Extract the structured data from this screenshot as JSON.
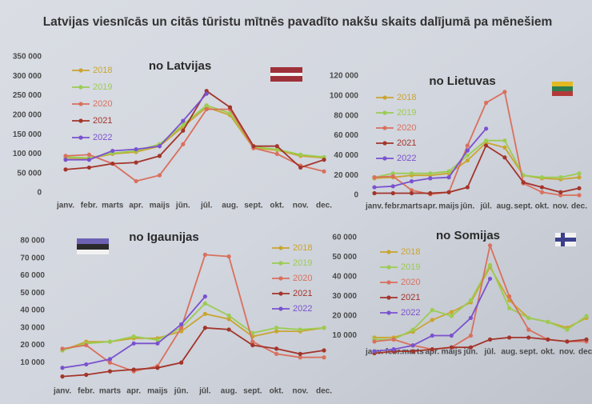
{
  "title": "Latvijas viesnīcās un citās tūristu mītnēs pavadīto nakšu skaits dalījumā pa mēnešiem",
  "chart_data": [
    {
      "type": "line",
      "title": "no Latvijas",
      "categories": [
        "janv.",
        "febr.",
        "marts",
        "apr.",
        "maijs",
        "jūn.",
        "jūl.",
        "aug.",
        "sept.",
        "okt.",
        "nov.",
        "dec."
      ],
      "ylim": [
        0,
        350000
      ],
      "yticks": [
        0,
        {
          "value": 50000,
          "label": "50 000"
        },
        {
          "value": 100000,
          "label": "100 000"
        },
        {
          "value": 150000,
          "label": "150 000"
        },
        {
          "value": 200000,
          "label": "200 000"
        },
        {
          "value": 250000,
          "label": "250 000"
        },
        {
          "value": 300000,
          "label": "300 000"
        },
        {
          "value": 350000,
          "label": "350 000"
        }
      ],
      "series": [
        {
          "name": "2018",
          "color": "#c9a530",
          "values": [
            90000,
            88000,
            100000,
            105000,
            120000,
            170000,
            220000,
            200000,
            115000,
            110000,
            95000,
            90000
          ]
        },
        {
          "name": "2019",
          "color": "#9bcc52",
          "values": [
            92000,
            90000,
            102000,
            108000,
            125000,
            175000,
            225000,
            205000,
            118000,
            112000,
            98000,
            92000
          ]
        },
        {
          "name": "2020",
          "color": "#d9705e",
          "values": [
            95000,
            98000,
            75000,
            30000,
            45000,
            125000,
            215000,
            215000,
            115000,
            100000,
            70000,
            55000
          ]
        },
        {
          "name": "2021",
          "color": "#a3352b",
          "values": [
            60000,
            65000,
            75000,
            78000,
            95000,
            160000,
            262000,
            220000,
            120000,
            120000,
            65000,
            85000
          ]
        },
        {
          "name": "2022",
          "color": "#7a52cf",
          "values": [
            85000,
            85000,
            108000,
            112000,
            120000,
            185000,
            255000,
            null,
            null,
            null,
            null,
            null
          ]
        }
      ]
    },
    {
      "type": "line",
      "title": "no Lietuvas",
      "categories": [
        "janv.",
        "febr.",
        "marts",
        "apr.",
        "maijs",
        "jūn.",
        "jūl.",
        "aug.",
        "sept.",
        "okt.",
        "nov.",
        "dec."
      ],
      "ylim": [
        0,
        120000
      ],
      "yticks": [
        0,
        {
          "value": 20000,
          "label": "20 000"
        },
        {
          "value": 40000,
          "label": "40 000"
        },
        {
          "value": 60000,
          "label": "60 000"
        },
        {
          "value": 80000,
          "label": "80 000"
        },
        {
          "value": 100000,
          "label": "100 000"
        },
        {
          "value": 120000,
          "label": "120 000"
        }
      ],
      "series": [
        {
          "name": "2018",
          "color": "#c9a530",
          "values": [
            17000,
            18000,
            20000,
            20000,
            22000,
            35000,
            53000,
            48000,
            20000,
            17000,
            16000,
            18000
          ]
        },
        {
          "name": "2019",
          "color": "#9bcc52",
          "values": [
            18000,
            22000,
            22000,
            22000,
            24000,
            40000,
            55000,
            55000,
            20000,
            18000,
            18000,
            22000
          ]
        },
        {
          "name": "2020",
          "color": "#d9705e",
          "values": [
            18000,
            19000,
            5000,
            1000,
            3000,
            50000,
            93000,
            104000,
            12000,
            3000,
            0,
            0
          ]
        },
        {
          "name": "2021",
          "color": "#a3352b",
          "values": [
            2000,
            2000,
            2000,
            2000,
            3000,
            8000,
            50000,
            38000,
            13000,
            8000,
            3000,
            7000
          ]
        },
        {
          "name": "2022",
          "color": "#7a52cf",
          "values": [
            8000,
            9000,
            14000,
            17000,
            18000,
            45000,
            67000,
            null,
            null,
            null,
            null,
            null
          ]
        }
      ]
    },
    {
      "type": "line",
      "title": "no Igaunijas",
      "categories": [
        "janv.",
        "febr.",
        "marts",
        "apr.",
        "maijs",
        "jūn.",
        "jūl.",
        "aug.",
        "sept.",
        "okt.",
        "nov.",
        "dec."
      ],
      "ylim": [
        0,
        80000
      ],
      "yticks": [
        {
          "value": 10000,
          "label": "10 000"
        },
        {
          "value": 20000,
          "label": "20 000"
        },
        {
          "value": 30000,
          "label": "30 000"
        },
        {
          "value": 40000,
          "label": "40 000"
        },
        {
          "value": 50000,
          "label": "50 000"
        },
        {
          "value": 60000,
          "label": "60 000"
        },
        {
          "value": 70000,
          "label": "70 000"
        },
        {
          "value": 80000,
          "label": "80 000"
        }
      ],
      "series": [
        {
          "name": "2018",
          "color": "#c9a530",
          "values": [
            17000,
            22000,
            22000,
            24000,
            24000,
            28000,
            38000,
            35000,
            25000,
            28000,
            28000,
            30000
          ]
        },
        {
          "name": "2019",
          "color": "#9bcc52",
          "values": [
            17000,
            21000,
            22000,
            25000,
            23000,
            30000,
            44000,
            37000,
            27000,
            30000,
            29000,
            30000
          ]
        },
        {
          "name": "2020",
          "color": "#d9705e",
          "values": [
            18000,
            20000,
            10000,
            5000,
            8000,
            30000,
            72000,
            71000,
            22000,
            15000,
            13000,
            13000
          ]
        },
        {
          "name": "2021",
          "color": "#a3352b",
          "values": [
            2000,
            3000,
            5000,
            6000,
            7000,
            10000,
            30000,
            29000,
            20000,
            18000,
            15000,
            17000
          ]
        },
        {
          "name": "2022",
          "color": "#7a52cf",
          "values": [
            7000,
            9000,
            12000,
            21000,
            21000,
            32000,
            48000,
            null,
            null,
            null,
            null,
            null
          ]
        }
      ]
    },
    {
      "type": "line",
      "title": "no Somijas",
      "categories": [
        "janv.",
        "febr.",
        "marts",
        "apr.",
        "maijs",
        "jūn.",
        "jūl.",
        "aug.",
        "sept.",
        "okt.",
        "nov.",
        "dec."
      ],
      "ylim": [
        0,
        60000
      ],
      "yticks": [
        {
          "value": 10000,
          "label": "10 000"
        },
        {
          "value": 20000,
          "label": "20 000"
        },
        {
          "value": 30000,
          "label": "30 000"
        },
        {
          "value": 40000,
          "label": "40 000"
        },
        {
          "value": 50000,
          "label": "50 000"
        },
        {
          "value": 60000,
          "label": "60 000"
        }
      ],
      "series": [
        {
          "name": "2018",
          "color": "#c9a530",
          "values": [
            9000,
            9000,
            12000,
            18000,
            22000,
            27000,
            45000,
            28000,
            19000,
            17000,
            14000,
            19000
          ]
        },
        {
          "name": "2019",
          "color": "#9bcc52",
          "values": [
            8000,
            8000,
            13000,
            23000,
            20000,
            28000,
            46000,
            24000,
            19000,
            17000,
            13000,
            20000
          ]
        },
        {
          "name": "2020",
          "color": "#d9705e",
          "values": [
            7000,
            8000,
            5000,
            3000,
            4000,
            10000,
            56000,
            30000,
            13000,
            8000,
            7000,
            7000
          ]
        },
        {
          "name": "2021",
          "color": "#a3352b",
          "values": [
            1000,
            2000,
            2000,
            3000,
            4000,
            4000,
            8000,
            9000,
            9000,
            8000,
            7000,
            8000
          ]
        },
        {
          "name": "2022",
          "color": "#7a52cf",
          "values": [
            2000,
            3000,
            5000,
            10000,
            10000,
            19000,
            39000,
            null,
            null,
            null,
            null,
            null
          ]
        }
      ]
    }
  ]
}
